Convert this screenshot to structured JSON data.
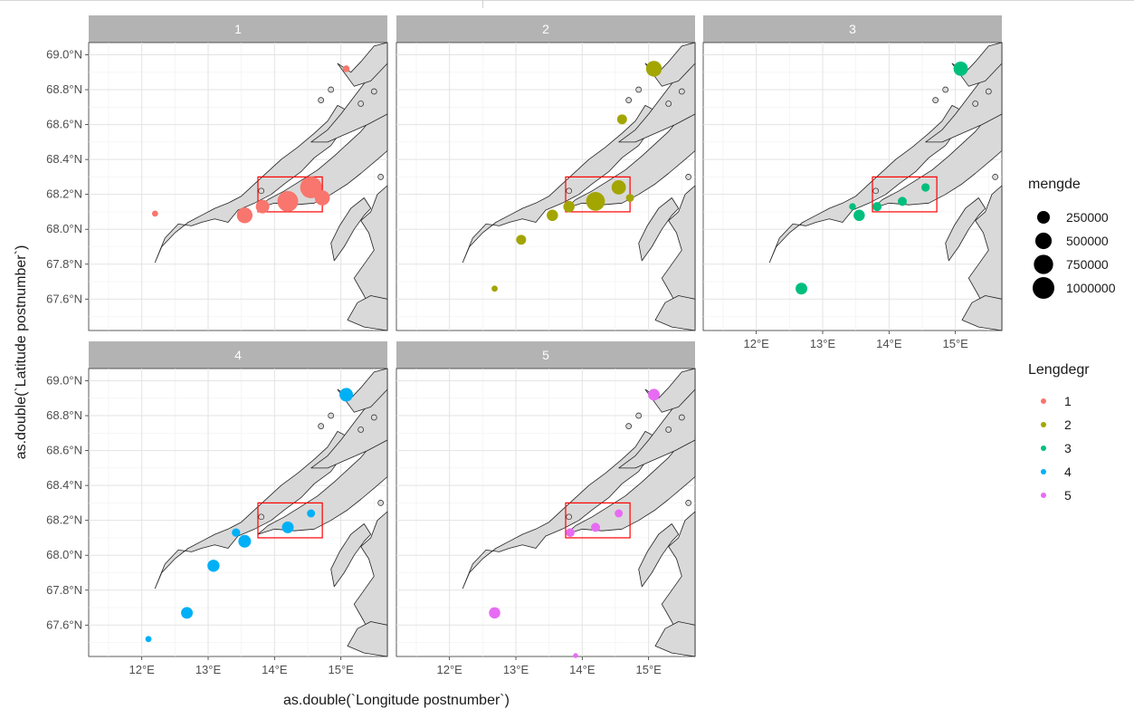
{
  "chart_data": {
    "type": "scatter",
    "xlabel": "as.double(`Longitude postnumber`)",
    "ylabel": "as.double(`Latitude postnumber`)",
    "xlim": [
      11.2,
      15.7
    ],
    "ylim": [
      67.42,
      69.07
    ],
    "x_ticks": [
      12,
      13,
      14,
      15
    ],
    "x_tick_labels": [
      "12°E",
      "13°E",
      "14°E",
      "15°E"
    ],
    "y_ticks": [
      67.6,
      67.8,
      68.0,
      68.2,
      68.4,
      68.6,
      68.8,
      69.0
    ],
    "y_tick_labels": [
      "67.6°N",
      "67.8°N",
      "68.0°N",
      "68.2°N",
      "68.4°N",
      "68.6°N",
      "68.8°N",
      "69.0°N"
    ],
    "grid": true,
    "basemap": "coastline",
    "highlight_box": {
      "lon": [
        13.75,
        14.72
      ],
      "lat": [
        68.1,
        68.3
      ],
      "color": "#ff0000"
    },
    "facets": [
      {
        "label": "1",
        "color": "#F8766D",
        "points": [
          {
            "lon": 15.08,
            "lat": 68.92,
            "mengde": 30000
          },
          {
            "lon": 12.2,
            "lat": 68.09,
            "mengde": 20000
          },
          {
            "lon": 13.55,
            "lat": 68.08,
            "mengde": 450000
          },
          {
            "lon": 13.82,
            "lat": 68.13,
            "mengde": 300000
          },
          {
            "lon": 14.2,
            "lat": 68.16,
            "mengde": 900000
          },
          {
            "lon": 14.55,
            "lat": 68.24,
            "mengde": 1000000
          },
          {
            "lon": 14.72,
            "lat": 68.18,
            "mengde": 400000
          }
        ]
      },
      {
        "label": "2",
        "color": "#A3A500",
        "points": [
          {
            "lon": 15.08,
            "lat": 68.92,
            "mengde": 450000
          },
          {
            "lon": 14.6,
            "lat": 68.63,
            "mengde": 120000
          },
          {
            "lon": 12.68,
            "lat": 67.66,
            "mengde": 20000
          },
          {
            "lon": 13.08,
            "lat": 67.94,
            "mengde": 120000
          },
          {
            "lon": 13.55,
            "lat": 68.08,
            "mengde": 180000
          },
          {
            "lon": 13.8,
            "lat": 68.13,
            "mengde": 180000
          },
          {
            "lon": 14.2,
            "lat": 68.16,
            "mengde": 700000
          },
          {
            "lon": 14.55,
            "lat": 68.24,
            "mengde": 350000
          },
          {
            "lon": 14.72,
            "lat": 68.18,
            "mengde": 60000
          }
        ]
      },
      {
        "label": "3",
        "color": "#00BF7D",
        "points": [
          {
            "lon": 15.08,
            "lat": 68.92,
            "mengde": 350000
          },
          {
            "lon": 12.68,
            "lat": 67.66,
            "mengde": 200000
          },
          {
            "lon": 13.45,
            "lat": 68.13,
            "mengde": 30000
          },
          {
            "lon": 13.55,
            "lat": 68.08,
            "mengde": 180000
          },
          {
            "lon": 13.82,
            "lat": 68.13,
            "mengde": 90000
          },
          {
            "lon": 14.2,
            "lat": 68.16,
            "mengde": 90000
          },
          {
            "lon": 14.55,
            "lat": 68.24,
            "mengde": 70000
          }
        ]
      },
      {
        "label": "4",
        "color": "#00B0F6",
        "points": [
          {
            "lon": 15.08,
            "lat": 68.92,
            "mengde": 300000
          },
          {
            "lon": 12.1,
            "lat": 67.52,
            "mengde": 20000
          },
          {
            "lon": 12.68,
            "lat": 67.67,
            "mengde": 200000
          },
          {
            "lon": 13.08,
            "lat": 67.94,
            "mengde": 220000
          },
          {
            "lon": 13.42,
            "lat": 68.13,
            "mengde": 70000
          },
          {
            "lon": 13.55,
            "lat": 68.08,
            "mengde": 250000
          },
          {
            "lon": 14.2,
            "lat": 68.16,
            "mengde": 200000
          },
          {
            "lon": 14.55,
            "lat": 68.24,
            "mengde": 60000
          }
        ]
      },
      {
        "label": "5",
        "color": "#E76BF3",
        "points": [
          {
            "lon": 15.08,
            "lat": 68.92,
            "mengde": 200000
          },
          {
            "lon": 12.68,
            "lat": 67.67,
            "mengde": 180000
          },
          {
            "lon": 13.82,
            "lat": 68.13,
            "mengde": 80000
          },
          {
            "lon": 14.2,
            "lat": 68.16,
            "mengde": 90000
          },
          {
            "lon": 14.55,
            "lat": 68.24,
            "mengde": 60000
          },
          {
            "lon": 13.9,
            "lat": 67.42,
            "mengde": 5000
          }
        ]
      }
    ],
    "legend_size": {
      "title": "mengde",
      "values": [
        250000,
        500000,
        750000,
        1000000
      ],
      "labels": [
        "250000",
        "500000",
        "750000",
        "1000000"
      ]
    },
    "legend_color": {
      "title": "Lengdegr",
      "entries": [
        {
          "label": "1",
          "color": "#F8766D"
        },
        {
          "label": "2",
          "color": "#A3A500"
        },
        {
          "label": "3",
          "color": "#00BF7D"
        },
        {
          "label": "4",
          "color": "#00B0F6"
        },
        {
          "label": "5",
          "color": "#E76BF3"
        }
      ]
    },
    "legend_position": "right"
  }
}
